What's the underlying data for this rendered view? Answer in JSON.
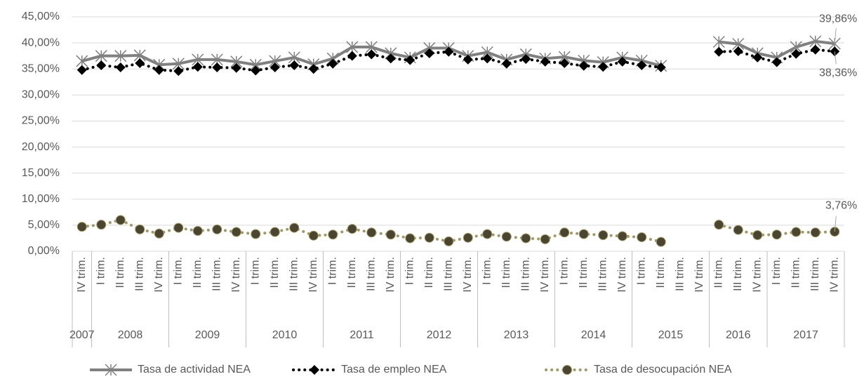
{
  "chart_data": {
    "type": "line",
    "category_groups": [
      {
        "label": "2007",
        "categories": [
          "IV trim."
        ]
      },
      {
        "label": "2008",
        "categories": [
          "I trim.",
          "II trim.",
          "III trim.",
          "IV trim."
        ]
      },
      {
        "label": "2009",
        "categories": [
          "I trim.",
          "II trim.",
          "III trim.",
          "IV trim."
        ]
      },
      {
        "label": "2010",
        "categories": [
          "I trim.",
          "II trim.",
          "III trim.",
          "IV trim."
        ]
      },
      {
        "label": "2011",
        "categories": [
          "I trim.",
          "II trim.",
          "III trim.",
          "IV trim."
        ]
      },
      {
        "label": "2012",
        "categories": [
          "I trim.",
          "II trim.",
          "III trim.",
          "IV trim."
        ]
      },
      {
        "label": "2013",
        "categories": [
          "I trim.",
          "II trim.",
          "III trim.",
          "IV trim."
        ]
      },
      {
        "label": "2014",
        "categories": [
          "I trim.",
          "II trim.",
          "III trim.",
          "IV trim."
        ]
      },
      {
        "label": "2015",
        "categories": [
          "I trim.",
          "II trim.",
          "III trim.",
          "IV trim."
        ]
      },
      {
        "label": "2016",
        "categories": [
          "II trim.",
          "III trim.",
          "IV trim."
        ]
      },
      {
        "label": "2017",
        "categories": [
          "I trim.",
          "II trim.",
          "III trim.",
          "IV trim."
        ]
      }
    ],
    "ylim": [
      0,
      45
    ],
    "yticks": [
      {
        "value": 0,
        "label": "0,00%"
      },
      {
        "value": 5,
        "label": "5,00%"
      },
      {
        "value": 10,
        "label": "10,00%"
      },
      {
        "value": 15,
        "label": "15,00%"
      },
      {
        "value": 20,
        "label": "20,00%"
      },
      {
        "value": 25,
        "label": "25,00%"
      },
      {
        "value": 30,
        "label": "30,00%"
      },
      {
        "value": 35,
        "label": "35,00%"
      },
      {
        "value": 40,
        "label": "40,00%"
      },
      {
        "value": 45,
        "label": "45,00%"
      }
    ],
    "grid": true,
    "legend": "bottom",
    "series": [
      {
        "name": "Tasa de actividad NEA",
        "color": "#808080",
        "marker": "asterisk",
        "line": "solid",
        "values": [
          36.5,
          37.5,
          37.5,
          37.6,
          35.8,
          36.0,
          36.8,
          36.8,
          36.4,
          35.8,
          36.5,
          37.2,
          35.9,
          37.0,
          39.2,
          39.2,
          38.0,
          37.2,
          39.0,
          39.0,
          37.5,
          38.2,
          36.8,
          37.8,
          37.0,
          37.3,
          36.6,
          36.3,
          37.2,
          36.6,
          35.6,
          null,
          null,
          40.2,
          39.8,
          38.0,
          37.2,
          39.2,
          40.3,
          39.86
        ],
        "value_labels": [
          null,
          null,
          null,
          null,
          null,
          null,
          null,
          null,
          null,
          null,
          null,
          null,
          null,
          null,
          null,
          null,
          null,
          null,
          null,
          null,
          null,
          null,
          null,
          null,
          null,
          null,
          null,
          null,
          null,
          null,
          null,
          null,
          null,
          null,
          null,
          null,
          null,
          null,
          null,
          "39,86%"
        ]
      },
      {
        "name": "Tasa de empleo NEA",
        "color": "#000000",
        "marker": "diamond",
        "line": "dotted",
        "values": [
          34.8,
          35.7,
          35.3,
          36.1,
          34.8,
          34.6,
          35.4,
          35.3,
          35.2,
          34.7,
          35.3,
          35.7,
          35.0,
          36.0,
          37.5,
          37.8,
          37.0,
          36.7,
          38.0,
          38.3,
          36.8,
          37.0,
          36.0,
          36.9,
          36.4,
          36.1,
          35.6,
          35.4,
          36.4,
          35.7,
          35.3,
          null,
          null,
          38.3,
          38.4,
          37.2,
          36.3,
          37.9,
          38.7,
          38.36
        ],
        "value_labels": [
          null,
          null,
          null,
          null,
          null,
          null,
          null,
          null,
          null,
          null,
          null,
          null,
          null,
          null,
          null,
          null,
          null,
          null,
          null,
          null,
          null,
          null,
          null,
          null,
          null,
          null,
          null,
          null,
          null,
          null,
          null,
          null,
          null,
          null,
          null,
          null,
          null,
          null,
          null,
          "38,36%"
        ]
      },
      {
        "name": "Tasa de desocupación NEA",
        "color": "#a09a62",
        "marker": "circle",
        "line": "dotted",
        "values": [
          4.7,
          5.1,
          6.0,
          4.2,
          3.4,
          4.5,
          3.9,
          4.2,
          3.7,
          3.3,
          3.7,
          4.5,
          3.0,
          3.2,
          4.3,
          3.6,
          3.2,
          2.5,
          2.6,
          1.9,
          2.6,
          3.3,
          2.8,
          2.5,
          2.3,
          3.6,
          3.3,
          3.1,
          2.9,
          2.7,
          1.8,
          null,
          null,
          5.1,
          4.1,
          3.1,
          3.2,
          3.7,
          3.6,
          3.76
        ],
        "value_labels": [
          null,
          null,
          null,
          null,
          null,
          null,
          null,
          null,
          null,
          null,
          null,
          null,
          null,
          null,
          null,
          null,
          null,
          null,
          null,
          null,
          null,
          null,
          null,
          null,
          null,
          null,
          null,
          null,
          null,
          null,
          null,
          null,
          null,
          null,
          null,
          null,
          null,
          null,
          null,
          "3,76%"
        ]
      }
    ]
  }
}
